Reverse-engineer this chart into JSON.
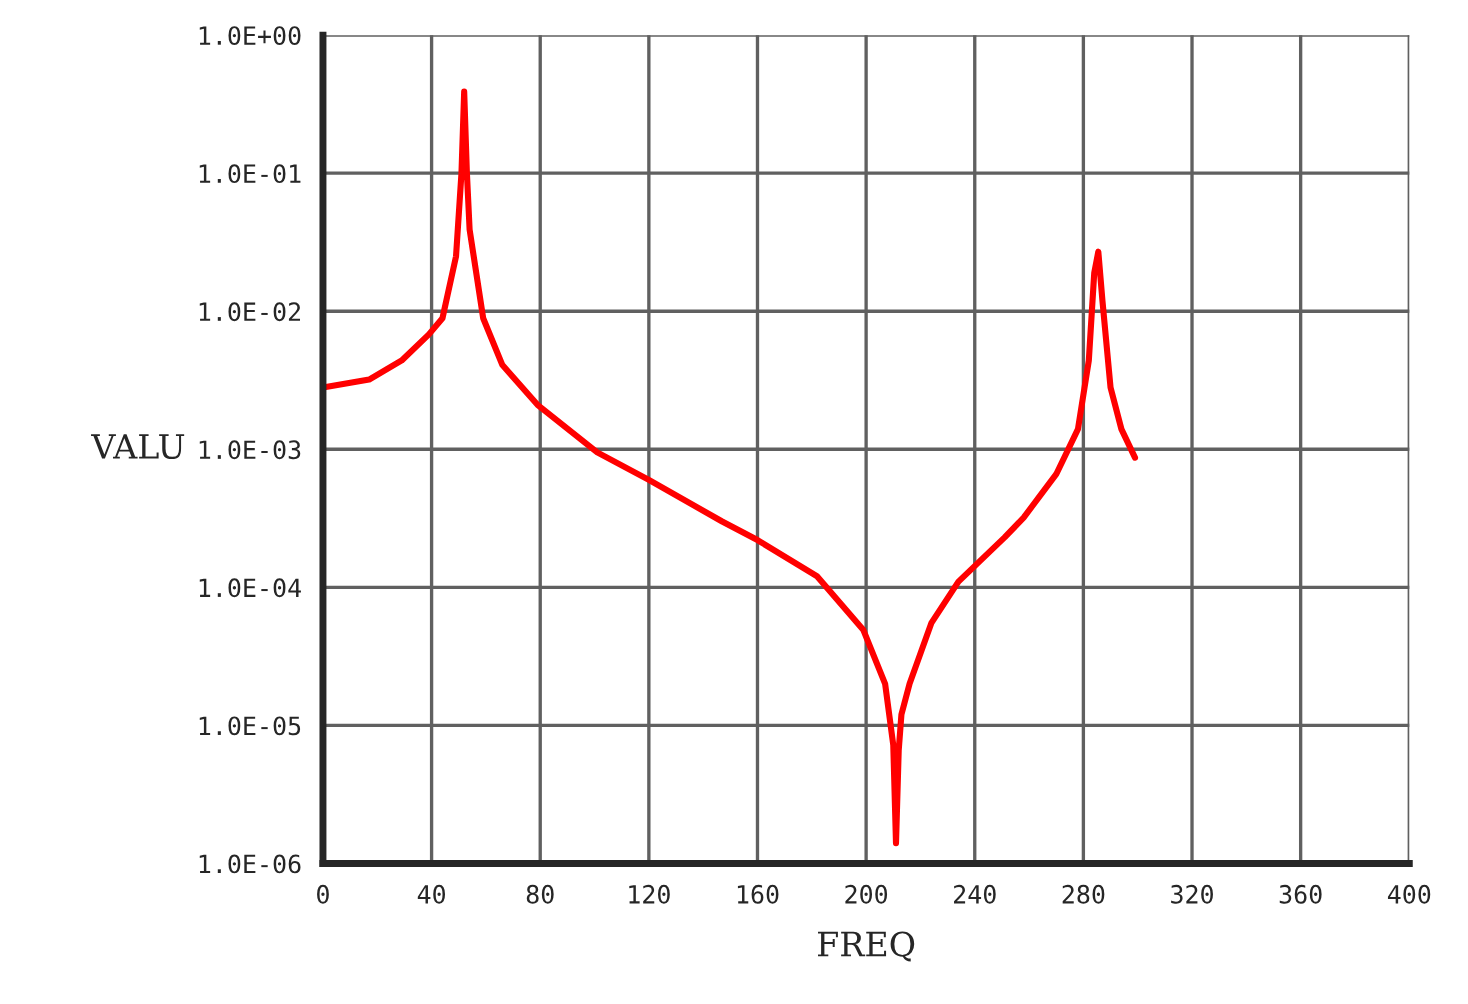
{
  "chart_data": {
    "type": "line",
    "xlabel": "FREQ",
    "ylabel": "VALU",
    "xlim": [
      0,
      400
    ],
    "xticks": [
      0,
      40,
      80,
      120,
      160,
      200,
      240,
      280,
      320,
      360,
      400
    ],
    "ylim": [
      1e-06,
      1
    ],
    "log": "y",
    "yticks": [
      {
        "value": 1e-06,
        "label": "1.0E-06"
      },
      {
        "value": 1e-05,
        "label": "1.0E-05"
      },
      {
        "value": 0.0001,
        "label": "1.0E-04"
      },
      {
        "value": 0.001,
        "label": "1.0E-03"
      },
      {
        "value": 0.01,
        "label": "1.0E-02"
      },
      {
        "value": 0.1,
        "label": "1.0E-01"
      },
      {
        "value": 1,
        "label": "1.0E+00"
      }
    ],
    "grid": true,
    "marker": "none",
    "line_style": "solid",
    "series": [
      {
        "color": "#ff0000",
        "x": [
          0,
          17,
          29,
          39,
          44,
          49,
          51,
          52,
          53,
          54,
          59,
          66,
          79,
          101,
          120,
          147,
          160,
          182,
          199,
          207,
          210,
          211,
          212,
          213,
          216,
          224,
          234,
          251,
          258,
          270,
          278,
          282,
          284,
          285.5,
          287,
          290,
          294,
          299
        ],
        "values": [
          0.0028,
          0.0032,
          0.0044,
          0.0068,
          0.0089,
          0.025,
          0.1,
          0.39,
          0.1,
          0.039,
          0.0089,
          0.0041,
          0.0021,
          0.00095,
          0.0006,
          0.0003,
          0.00022,
          0.00012,
          4.9e-05,
          2e-05,
          7.2e-06,
          1.4e-06,
          6.6e-06,
          1.2e-05,
          2e-05,
          5.5e-05,
          0.00011,
          0.00023,
          0.00032,
          0.00066,
          0.0014,
          0.0044,
          0.019,
          0.027,
          0.012,
          0.0028,
          0.0014,
          0.00087
        ]
      }
    ]
  }
}
